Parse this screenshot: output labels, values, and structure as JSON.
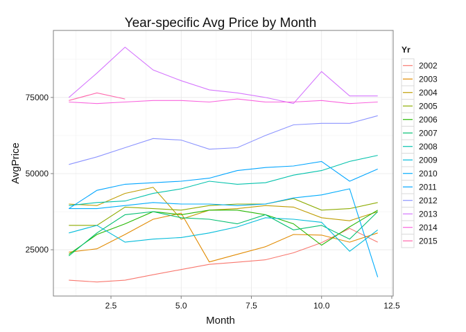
{
  "chart_data": {
    "type": "line",
    "title": "Year-specific Avg Price by Month",
    "xlabel": "Month",
    "ylabel": "AvgPrice",
    "xlim": [
      0.45,
      12.55
    ],
    "ylim": [
      9800,
      97000
    ],
    "x_ticks": [
      2.5,
      5.0,
      7.5,
      10.0,
      12.5
    ],
    "x_tick_labels": [
      "2.5",
      "5.0",
      "7.5",
      "10.0",
      "12.5"
    ],
    "y_ticks": [
      25000,
      50000,
      75000
    ],
    "y_tick_labels": [
      "25000",
      "50000",
      "75000"
    ],
    "grid": true,
    "legend": {
      "title": "Yr",
      "position": "right"
    },
    "x": [
      1,
      2,
      3,
      4,
      5,
      6,
      7,
      8,
      9,
      10,
      11,
      12
    ],
    "series": [
      {
        "name": "2002",
        "color": "#F8766D",
        "values": [
          15000,
          14400,
          15000,
          16800,
          18500,
          20200,
          20900,
          21700,
          24000,
          27300,
          32000,
          27500
        ]
      },
      {
        "name": "2003",
        "color": "#E18A00",
        "values": [
          24200,
          25300,
          30000,
          35000,
          37000,
          21000,
          23500,
          26000,
          30000,
          29800,
          27500,
          30500
        ]
      },
      {
        "name": "2004",
        "color": "#BE9C00",
        "values": [
          40000,
          39500,
          43500,
          45500,
          35000,
          38000,
          38500,
          39500,
          39000,
          35500,
          34500,
          37500
        ]
      },
      {
        "name": "2005",
        "color": "#8CAB00",
        "values": [
          33000,
          33000,
          39000,
          38500,
          38000,
          39500,
          40000,
          40000,
          41800,
          38000,
          38500,
          40500
        ]
      },
      {
        "name": "2006",
        "color": "#24B700",
        "values": [
          23500,
          30000,
          33500,
          37500,
          36500,
          38000,
          38000,
          36500,
          33500,
          26500,
          32500,
          38000
        ]
      },
      {
        "name": "2007",
        "color": "#00BE70",
        "values": [
          23000,
          30500,
          36500,
          37500,
          35500,
          35000,
          33500,
          36500,
          31500,
          33000,
          28500,
          37500
        ]
      },
      {
        "name": "2008",
        "color": "#00C1AB",
        "values": [
          39500,
          40500,
          41000,
          43500,
          45000,
          47500,
          46500,
          47000,
          49500,
          51000,
          54000,
          56000
        ]
      },
      {
        "name": "2009",
        "color": "#00BBDA",
        "values": [
          30500,
          33000,
          27500,
          28500,
          29000,
          30500,
          32500,
          35500,
          35000,
          34000,
          24500,
          31500
        ]
      },
      {
        "name": "2010",
        "color": "#00ACFC",
        "values": [
          38500,
          38500,
          39500,
          40500,
          40000,
          40000,
          39500,
          40000,
          42000,
          43000,
          45000,
          16000
        ]
      },
      {
        "name": "2011",
        "color": "#00A5FF",
        "values": [
          38500,
          44500,
          46500,
          47000,
          47500,
          48500,
          51000,
          52000,
          52500,
          54000,
          47500,
          51500
        ]
      },
      {
        "name": "2012",
        "color": "#8B93FF",
        "values": [
          53000,
          55500,
          58500,
          61500,
          61000,
          58000,
          58500,
          62500,
          66000,
          66500,
          66500,
          69000
        ]
      },
      {
        "name": "2013",
        "color": "#D575FE",
        "values": [
          75000,
          83000,
          91500,
          84000,
          80500,
          77500,
          76500,
          75000,
          73000,
          83500,
          75500,
          75500
        ]
      },
      {
        "name": "2014",
        "color": "#F962DD",
        "values": [
          73500,
          73000,
          73500,
          74000,
          74000,
          73500,
          74500,
          73500,
          73500,
          74000,
          73000,
          73500
        ]
      },
      {
        "name": "2015",
        "color": "#FF65AC",
        "values": [
          74000,
          76500,
          74500,
          null,
          null,
          null,
          null,
          null,
          null,
          null,
          null,
          null
        ]
      }
    ]
  }
}
